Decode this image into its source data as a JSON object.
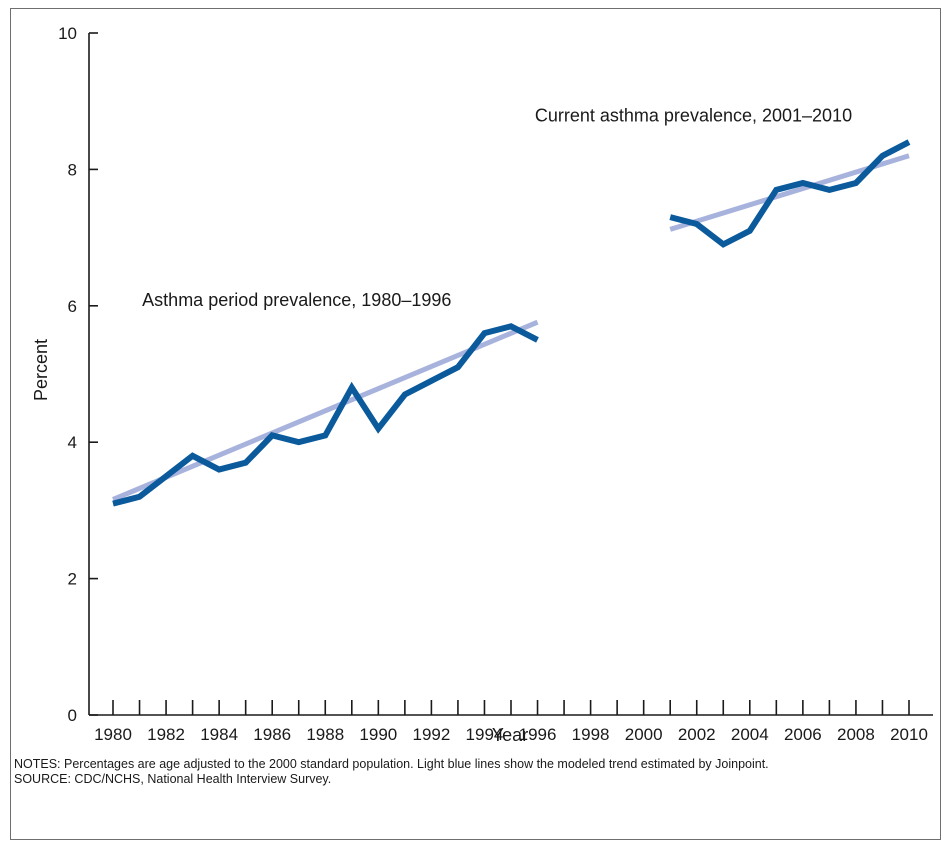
{
  "chart_data": {
    "type": "line",
    "xlabel": "Year",
    "ylabel": "Percent",
    "xlim": [
      1980,
      2010
    ],
    "ylim": [
      0,
      10
    ],
    "x_ticks": [
      1980,
      1981,
      1982,
      1983,
      1984,
      1985,
      1986,
      1987,
      1988,
      1989,
      1990,
      1991,
      1992,
      1993,
      1994,
      1995,
      1996,
      1997,
      1998,
      1999,
      2000,
      2001,
      2002,
      2003,
      2004,
      2005,
      2006,
      2007,
      2008,
      2009,
      2010
    ],
    "x_tick_labels": [
      "1980",
      "1982",
      "1984",
      "1986",
      "1988",
      "1990",
      "1992",
      "1994",
      "1996",
      "1998",
      "2000",
      "2002",
      "2004",
      "2006",
      "2008",
      "2010"
    ],
    "y_ticks": [
      0,
      2,
      4,
      6,
      8,
      10
    ],
    "y_tick_labels": [
      "0",
      "2",
      "4",
      "6",
      "8",
      "10"
    ],
    "series": [
      {
        "name": "Asthma period prevalence, 1980–1996",
        "color": "#0a5a9c",
        "x": [
          1980,
          1981,
          1982,
          1983,
          1984,
          1985,
          1986,
          1987,
          1988,
          1989,
          1990,
          1991,
          1992,
          1993,
          1994,
          1995,
          1996
        ],
        "values": [
          3.1,
          3.2,
          3.5,
          3.8,
          3.6,
          3.7,
          4.1,
          4.0,
          4.1,
          4.8,
          4.2,
          4.7,
          4.9,
          5.1,
          5.6,
          5.7,
          5.5
        ]
      },
      {
        "name": "Current asthma prevalence, 2001–2010",
        "color": "#0a5a9c",
        "x": [
          2001,
          2002,
          2003,
          2004,
          2005,
          2006,
          2007,
          2008,
          2009,
          2010
        ],
        "values": [
          7.3,
          7.2,
          6.9,
          7.1,
          7.7,
          7.8,
          7.7,
          7.8,
          8.2,
          8.4
        ]
      }
    ],
    "trend_lines": [
      {
        "color": "#a7b3dc",
        "x": [
          1980,
          1996
        ],
        "values": [
          3.16,
          5.76
        ]
      },
      {
        "color": "#a7b3dc",
        "x": [
          2001,
          2010
        ],
        "values": [
          7.12,
          8.2
        ]
      }
    ],
    "annotations": [
      {
        "text": "Asthma period prevalence, 1980–1996",
        "x": 1981.1,
        "y": 6.0
      },
      {
        "text": "Current asthma prevalence, 2001–2010",
        "x": 1995.9,
        "y": 8.7
      }
    ]
  },
  "notes": {
    "notes_text": "NOTES: Percentages are age adjusted to the 2000 standard population. Light blue lines show the modeled trend estimated by Joinpoint.",
    "source_text": "SOURCE: CDC/NCHS, National Health Interview Survey."
  }
}
